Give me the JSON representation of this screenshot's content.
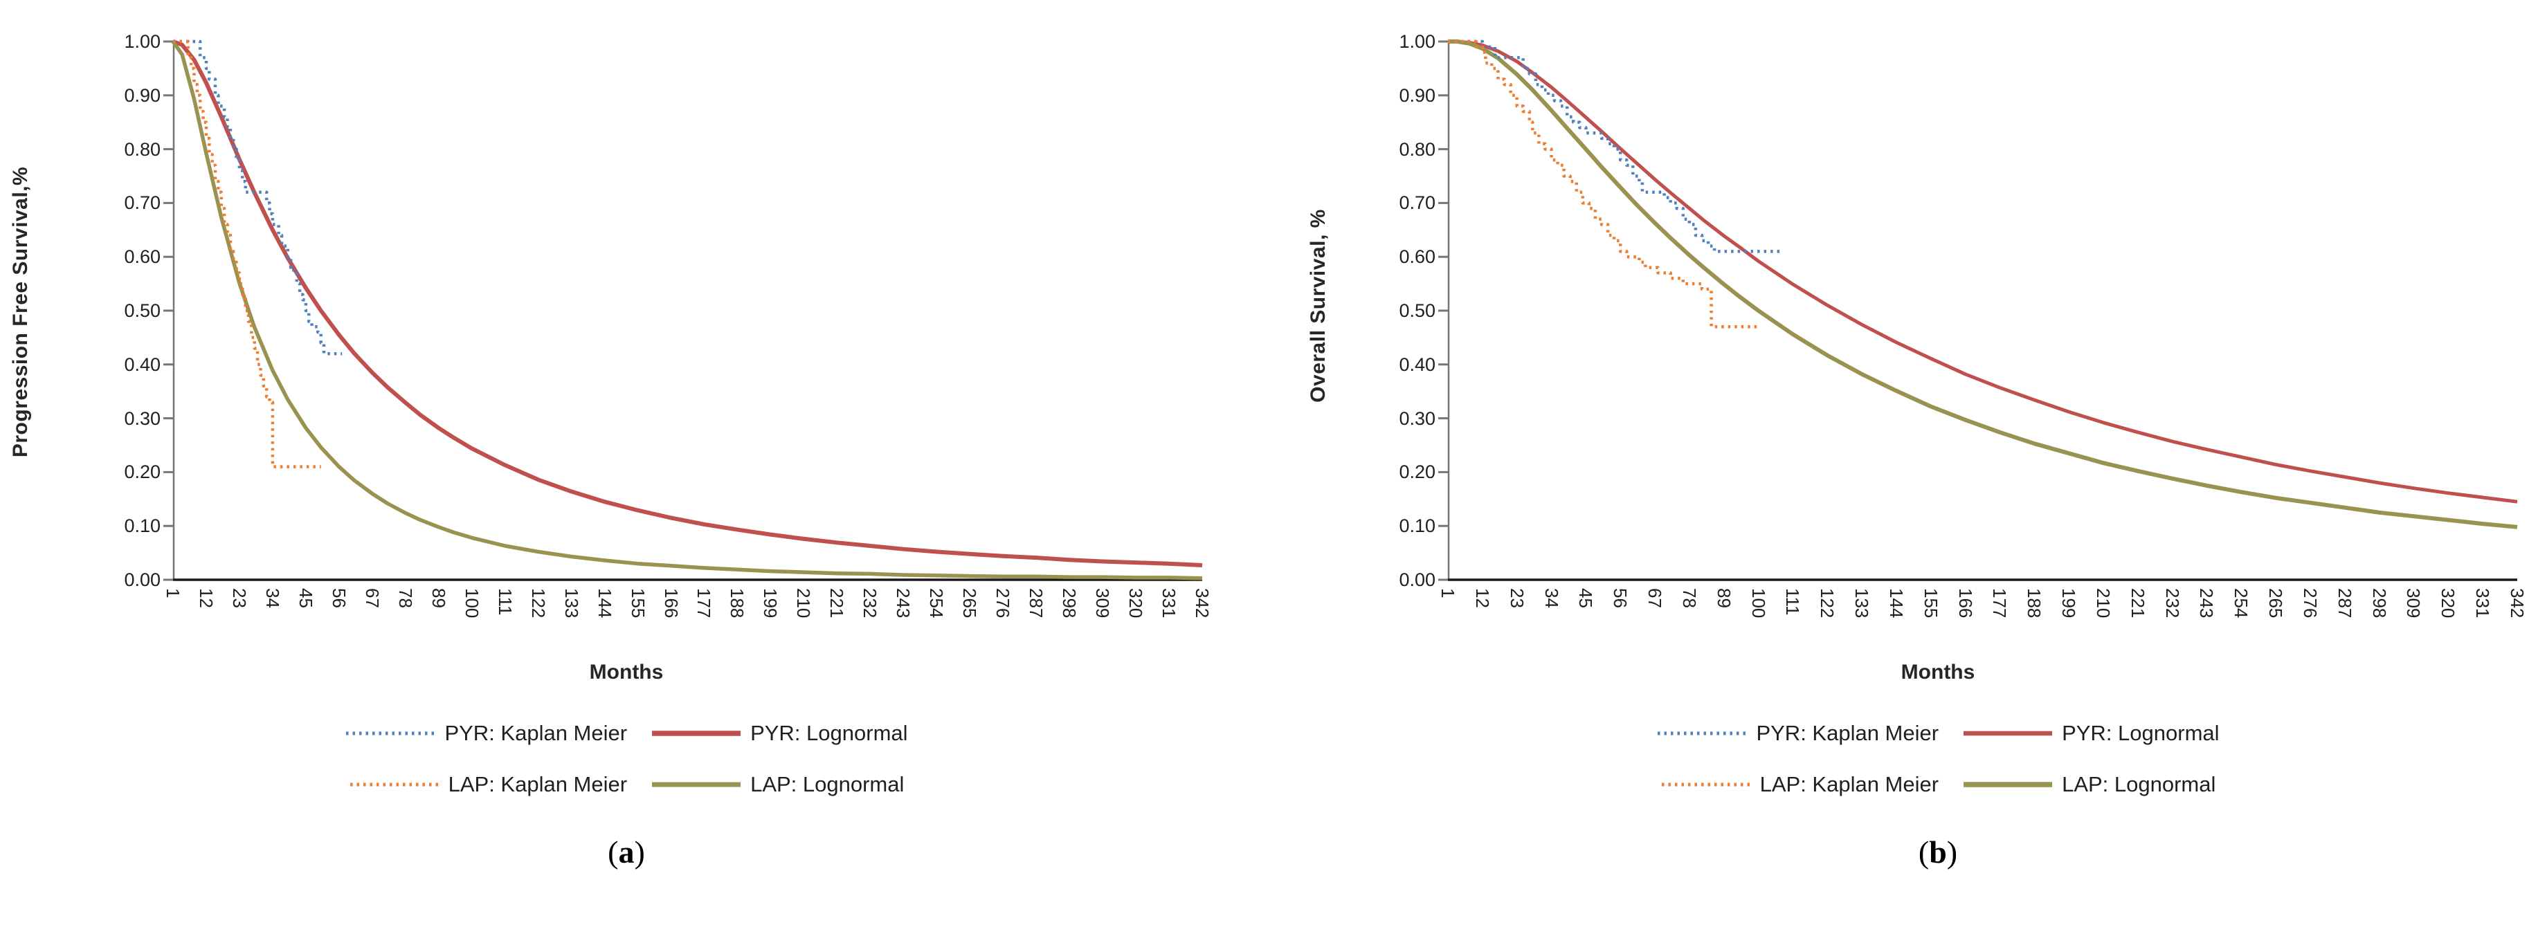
{
  "figure": {
    "background": "#FFFFFF",
    "description": "Two-panel survival analysis figure: Kaplan Meier estimates and fitted Lognormal curves for PYR and LAP treatments",
    "panel_a_caption": "(a)",
    "panel_b_caption": "(b)",
    "panel_a_caption_letter": "a",
    "panel_b_caption_letter": "b"
  },
  "colors": {
    "pyr_km_blue": "#4E81BD",
    "pyr_lognormal_red": "#C0504D",
    "lap_km_orange": "#ED7D31",
    "lap_lognormal_olive": "#9A9250",
    "x_axis": "#1a1a1a",
    "y_axis": "#767676",
    "tick_text": "#1f1f1f"
  },
  "chart_data": [
    {
      "type": "line",
      "panel": "a",
      "caption": "(a)",
      "caption_letter": "a",
      "xlabel": "Months",
      "ylabel": "Progression Free Survival,%",
      "xlim": [
        1,
        342
      ],
      "ylim": [
        0.0,
        1.0
      ],
      "grid": false,
      "legend_position": "bottom",
      "yticks": [
        "1.00",
        "0.90",
        "0.80",
        "0.70",
        "0.60",
        "0.50",
        "0.40",
        "0.30",
        "0.20",
        "0.10",
        "0.00"
      ],
      "xticks": [
        1,
        12,
        23,
        34,
        45,
        56,
        67,
        78,
        89,
        100,
        111,
        122,
        133,
        144,
        155,
        166,
        177,
        188,
        199,
        210,
        221,
        232,
        243,
        254,
        265,
        276,
        287,
        298,
        309,
        320,
        331,
        342
      ],
      "series": [
        {
          "name": "PYR: Lognormal",
          "kind": "smooth",
          "dash": "solid",
          "color": "#C0504D",
          "width": 6,
          "x": [
            1,
            4,
            8,
            12,
            17,
            23,
            28,
            34,
            39,
            45,
            50,
            56,
            61,
            67,
            72,
            78,
            83,
            89,
            94,
            100,
            111,
            122,
            133,
            144,
            155,
            166,
            177,
            188,
            199,
            210,
            221,
            232,
            243,
            254,
            265,
            276,
            287,
            298,
            309,
            320,
            331,
            342
          ],
          "values": [
            1.0,
            0.994,
            0.966,
            0.923,
            0.86,
            0.781,
            0.719,
            0.65,
            0.598,
            0.542,
            0.5,
            0.455,
            0.421,
            0.385,
            0.358,
            0.329,
            0.306,
            0.282,
            0.264,
            0.244,
            0.213,
            0.186,
            0.164,
            0.145,
            0.129,
            0.115,
            0.103,
            0.093,
            0.084,
            0.076,
            0.069,
            0.063,
            0.057,
            0.052,
            0.048,
            0.044,
            0.041,
            0.037,
            0.034,
            0.032,
            0.03,
            0.027
          ]
        },
        {
          "name": "LAP: Lognormal",
          "kind": "smooth",
          "dash": "solid",
          "color": "#9A9250",
          "width": 5.5,
          "x": [
            1,
            4,
            8,
            12,
            17,
            23,
            28,
            34,
            39,
            45,
            50,
            56,
            61,
            67,
            72,
            78,
            83,
            89,
            94,
            100,
            111,
            122,
            133,
            144,
            155,
            166,
            177,
            188,
            199,
            210,
            221,
            232,
            243,
            254,
            265,
            276,
            287,
            298,
            309,
            320,
            331,
            342
          ],
          "values": [
            1.0,
            0.976,
            0.893,
            0.792,
            0.673,
            0.551,
            0.469,
            0.389,
            0.335,
            0.282,
            0.246,
            0.21,
            0.185,
            0.16,
            0.142,
            0.124,
            0.111,
            0.098,
            0.088,
            0.078,
            0.063,
            0.052,
            0.043,
            0.036,
            0.03,
            0.026,
            0.022,
            0.019,
            0.016,
            0.014,
            0.012,
            0.011,
            0.009,
            0.008,
            0.007,
            0.006,
            0.006,
            0.005,
            0.005,
            0.004,
            0.004,
            0.003
          ]
        },
        {
          "name": "PYR: Kaplan Meier",
          "kind": "step",
          "dash": "dotted",
          "color": "#4E81BD",
          "width": 4.5,
          "points": [
            [
              1,
              1.0
            ],
            [
              9,
              1.0
            ],
            [
              10,
              0.97
            ],
            [
              12,
              0.95
            ],
            [
              13,
              0.93
            ],
            [
              15,
              0.9
            ],
            [
              16,
              0.88
            ],
            [
              18,
              0.86
            ],
            [
              19,
              0.84
            ],
            [
              20,
              0.82
            ],
            [
              21,
              0.8
            ],
            [
              22,
              0.78
            ],
            [
              23,
              0.76
            ],
            [
              24,
              0.74
            ],
            [
              25,
              0.72
            ],
            [
              31,
              0.72
            ],
            [
              32,
              0.7
            ],
            [
              33,
              0.68
            ],
            [
              34,
              0.66
            ],
            [
              36,
              0.64
            ],
            [
              37,
              0.62
            ],
            [
              39,
              0.6
            ],
            [
              40,
              0.58
            ],
            [
              41,
              0.57
            ],
            [
              42,
              0.55
            ],
            [
              43,
              0.53
            ],
            [
              44,
              0.52
            ],
            [
              45,
              0.5
            ],
            [
              46,
              0.48
            ],
            [
              47,
              0.47
            ],
            [
              49,
              0.46
            ],
            [
              50,
              0.44
            ],
            [
              51,
              0.42
            ],
            [
              57,
              0.42
            ]
          ]
        },
        {
          "name": "LAP: Kaplan Meier",
          "kind": "step",
          "dash": "dotted",
          "color": "#ED7D31",
          "width": 4.5,
          "points": [
            [
              1,
              1.0
            ],
            [
              5,
              1.0
            ],
            [
              6,
              0.97
            ],
            [
              7,
              0.95
            ],
            [
              8,
              0.92
            ],
            [
              9,
              0.9
            ],
            [
              10,
              0.87
            ],
            [
              11,
              0.85
            ],
            [
              12,
              0.82
            ],
            [
              13,
              0.79
            ],
            [
              14,
              0.77
            ],
            [
              15,
              0.74
            ],
            [
              16,
              0.72
            ],
            [
              17,
              0.69
            ],
            [
              18,
              0.66
            ],
            [
              19,
              0.64
            ],
            [
              20,
              0.61
            ],
            [
              21,
              0.59
            ],
            [
              22,
              0.57
            ],
            [
              23,
              0.55
            ],
            [
              24,
              0.53
            ],
            [
              25,
              0.5
            ],
            [
              26,
              0.48
            ],
            [
              27,
              0.45
            ],
            [
              28,
              0.43
            ],
            [
              29,
              0.4
            ],
            [
              30,
              0.38
            ],
            [
              31,
              0.36
            ],
            [
              32,
              0.34
            ],
            [
              33,
              0.33
            ],
            [
              34,
              0.21
            ],
            [
              50,
              0.21
            ]
          ]
        }
      ],
      "legend_rows": [
        [
          "PYR: Kaplan Meier",
          "PYR: Lognormal"
        ],
        [
          "LAP: Kaplan Meier",
          "LAP: Lognormal"
        ]
      ]
    },
    {
      "type": "line",
      "panel": "b",
      "caption": "(b)",
      "caption_letter": "b",
      "xlabel": "Months",
      "ylabel": "Overall Survival, %",
      "xlim": [
        1,
        342
      ],
      "ylim": [
        0.0,
        1.0
      ],
      "grid": false,
      "legend_position": "bottom",
      "yticks": [
        "1.00",
        "0.90",
        "0.80",
        "0.70",
        "0.60",
        "0.50",
        "0.40",
        "0.30",
        "0.20",
        "0.10",
        "0.00"
      ],
      "xticks": [
        1,
        12,
        23,
        34,
        45,
        56,
        67,
        78,
        89,
        100,
        111,
        122,
        133,
        144,
        155,
        166,
        177,
        188,
        199,
        210,
        221,
        232,
        243,
        254,
        265,
        276,
        287,
        298,
        309,
        320,
        331,
        342
      ],
      "series": [
        {
          "name": "PYR: Lognormal",
          "kind": "smooth",
          "dash": "solid",
          "color": "#C0504D",
          "width": 5,
          "x": [
            1,
            4,
            8,
            12,
            17,
            23,
            28,
            34,
            39,
            45,
            50,
            56,
            61,
            67,
            72,
            78,
            83,
            89,
            94,
            100,
            111,
            122,
            133,
            144,
            155,
            166,
            177,
            188,
            199,
            210,
            221,
            232,
            243,
            254,
            265,
            276,
            287,
            298,
            309,
            320,
            331,
            342
          ],
          "values": [
            1.0,
            1.0,
            0.998,
            0.993,
            0.982,
            0.963,
            0.942,
            0.915,
            0.89,
            0.859,
            0.833,
            0.801,
            0.775,
            0.744,
            0.719,
            0.69,
            0.666,
            0.639,
            0.618,
            0.592,
            0.549,
            0.51,
            0.474,
            0.441,
            0.411,
            0.382,
            0.357,
            0.334,
            0.312,
            0.292,
            0.274,
            0.257,
            0.242,
            0.228,
            0.214,
            0.202,
            0.191,
            0.18,
            0.17,
            0.161,
            0.153,
            0.145
          ]
        },
        {
          "name": "LAP: Lognormal",
          "kind": "smooth",
          "dash": "solid",
          "color": "#9A9250",
          "width": 6,
          "x": [
            1,
            4,
            8,
            12,
            17,
            23,
            28,
            34,
            39,
            45,
            50,
            56,
            61,
            67,
            72,
            78,
            83,
            89,
            94,
            100,
            111,
            122,
            133,
            144,
            155,
            166,
            177,
            188,
            199,
            210,
            221,
            232,
            243,
            254,
            265,
            276,
            287,
            298,
            309,
            320,
            331,
            342
          ],
          "values": [
            1.0,
            1.0,
            0.996,
            0.987,
            0.969,
            0.939,
            0.91,
            0.872,
            0.839,
            0.8,
            0.767,
            0.729,
            0.698,
            0.663,
            0.635,
            0.603,
            0.578,
            0.549,
            0.526,
            0.5,
            0.456,
            0.417,
            0.382,
            0.351,
            0.322,
            0.297,
            0.274,
            0.253,
            0.235,
            0.217,
            0.202,
            0.188,
            0.175,
            0.163,
            0.152,
            0.143,
            0.134,
            0.125,
            0.118,
            0.111,
            0.104,
            0.098
          ]
        },
        {
          "name": "PYR: Kaplan Meier",
          "kind": "step",
          "dash": "dotted",
          "color": "#4E81BD",
          "width": 4.5,
          "points": [
            [
              1,
              1.0
            ],
            [
              10,
              1.0
            ],
            [
              12,
              0.99
            ],
            [
              15,
              0.99
            ],
            [
              16,
              0.97
            ],
            [
              24,
              0.97
            ],
            [
              25,
              0.95
            ],
            [
              27,
              0.94
            ],
            [
              29,
              0.92
            ],
            [
              31,
              0.91
            ],
            [
              33,
              0.9
            ],
            [
              35,
              0.89
            ],
            [
              37,
              0.88
            ],
            [
              39,
              0.86
            ],
            [
              41,
              0.85
            ],
            [
              43,
              0.84
            ],
            [
              45,
              0.83
            ],
            [
              50,
              0.82
            ],
            [
              52,
              0.81
            ],
            [
              54,
              0.8
            ],
            [
              56,
              0.78
            ],
            [
              58,
              0.77
            ],
            [
              60,
              0.75
            ],
            [
              62,
              0.74
            ],
            [
              63,
              0.72
            ],
            [
              70,
              0.71
            ],
            [
              72,
              0.7
            ],
            [
              74,
              0.69
            ],
            [
              76,
              0.67
            ],
            [
              78,
              0.66
            ],
            [
              80,
              0.64
            ],
            [
              82,
              0.63
            ],
            [
              84,
              0.62
            ],
            [
              86,
              0.61
            ],
            [
              108,
              0.61
            ]
          ]
        },
        {
          "name": "LAP: Kaplan Meier",
          "kind": "step",
          "dash": "dotted",
          "color": "#ED7D31",
          "width": 4.5,
          "points": [
            [
              1,
              1.0
            ],
            [
              8,
              1.0
            ],
            [
              10,
              0.99
            ],
            [
              12,
              0.98
            ],
            [
              13,
              0.96
            ],
            [
              15,
              0.95
            ],
            [
              17,
              0.93
            ],
            [
              19,
              0.92
            ],
            [
              21,
              0.9
            ],
            [
              23,
              0.88
            ],
            [
              25,
              0.87
            ],
            [
              27,
              0.85
            ],
            [
              28,
              0.83
            ],
            [
              30,
              0.81
            ],
            [
              32,
              0.8
            ],
            [
              34,
              0.78
            ],
            [
              36,
              0.77
            ],
            [
              38,
              0.75
            ],
            [
              40,
              0.74
            ],
            [
              42,
              0.72
            ],
            [
              44,
              0.7
            ],
            [
              46,
              0.69
            ],
            [
              48,
              0.67
            ],
            [
              50,
              0.66
            ],
            [
              52,
              0.64
            ],
            [
              54,
              0.63
            ],
            [
              56,
              0.61
            ],
            [
              58,
              0.6
            ],
            [
              62,
              0.59
            ],
            [
              64,
              0.58
            ],
            [
              68,
              0.57
            ],
            [
              72,
              0.56
            ],
            [
              76,
              0.55
            ],
            [
              80,
              0.55
            ],
            [
              82,
              0.54
            ],
            [
              85,
              0.47
            ],
            [
              100,
              0.47
            ]
          ]
        }
      ],
      "legend_rows": [
        [
          "PYR: Kaplan Meier",
          "PYR: Lognormal"
        ],
        [
          "LAP: Kaplan Meier",
          "LAP: Lognormal"
        ]
      ]
    }
  ]
}
